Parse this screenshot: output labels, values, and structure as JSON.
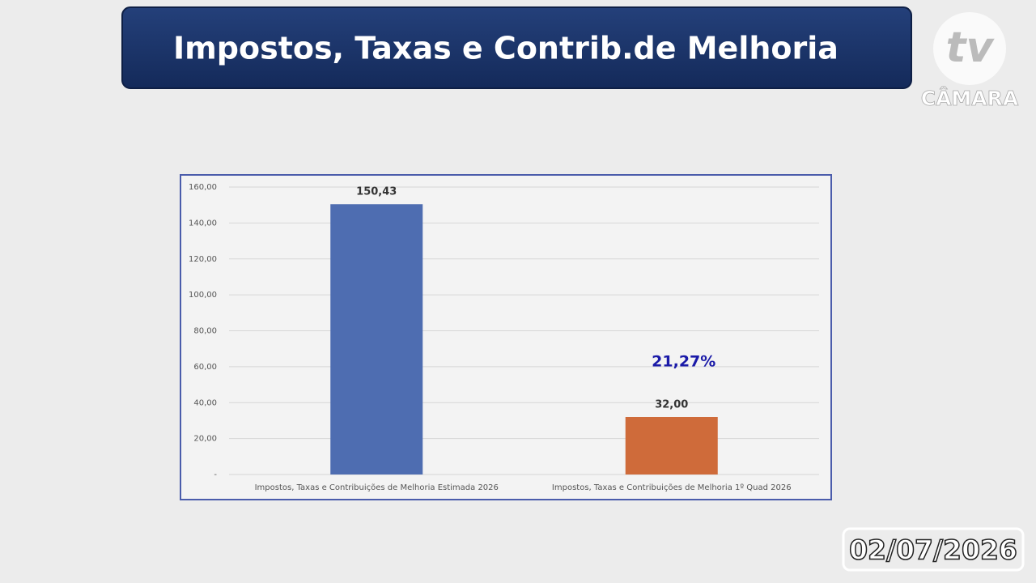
{
  "header": {
    "title": "Impostos, Taxas e Contrib.de Melhoria"
  },
  "logo": {
    "mark": "tv",
    "name": "CÂMARA"
  },
  "date": "02/07/2026",
  "chart_data": {
    "type": "bar",
    "categories": [
      "Impostos, Taxas e Contribuições de Melhoria Estimada 2026",
      "Impostos, Taxas e Contribuições de Melhoria 1º Quad 2026"
    ],
    "values": [
      150.43,
      32.0
    ],
    "value_labels": [
      "150,43",
      "32,00"
    ],
    "colors": [
      "#4e6db1",
      "#cf6b3a"
    ],
    "annotation": "21,27%",
    "ylim": [
      0,
      160
    ],
    "yticks": [
      {
        "value": 0,
        "label": "-"
      },
      {
        "value": 20,
        "label": "20,00"
      },
      {
        "value": 40,
        "label": "40,00"
      },
      {
        "value": 60,
        "label": "60,00"
      },
      {
        "value": 80,
        "label": "80,00"
      },
      {
        "value": 100,
        "label": "100,00"
      },
      {
        "value": 120,
        "label": "120,00"
      },
      {
        "value": 140,
        "label": "140,00"
      },
      {
        "value": 160,
        "label": "160,00"
      }
    ],
    "grid": true
  }
}
